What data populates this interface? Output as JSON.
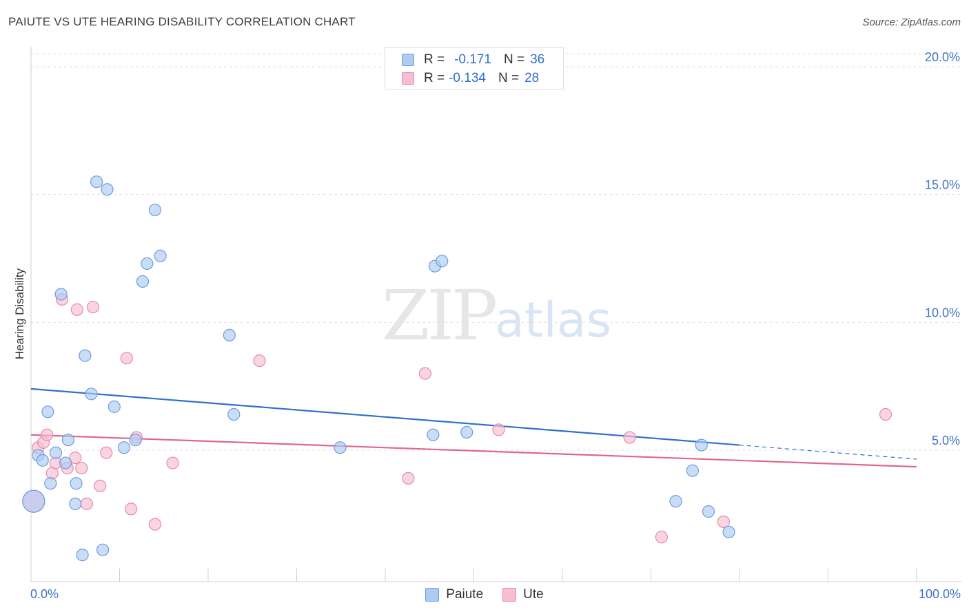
{
  "header": {
    "title": "PAIUTE VS UTE HEARING DISABILITY CORRELATION CHART",
    "source": "Source: ZipAtlas.com"
  },
  "watermark": {
    "zip": "ZIP",
    "atlas": "atlas"
  },
  "legend": {
    "rows": [
      {
        "r_label": "R =",
        "r_value": "-0.171",
        "n_label": "N =",
        "n_value": "36",
        "color": "#aecbf1"
      },
      {
        "r_label": "R =",
        "r_value": "-0.134",
        "n_label": "N =",
        "n_value": "28",
        "color": "#f7bfd1"
      }
    ]
  },
  "bottom_legend": [
    {
      "label": "Paiute",
      "color": "#aecbf1"
    },
    {
      "label": "Ute",
      "color": "#f7bfd1"
    }
  ],
  "chart_data": {
    "type": "scatter",
    "title": "PAIUTE VS UTE HEARING DISABILITY CORRELATION CHART",
    "xlabel": "",
    "ylabel": "Hearing Disability",
    "xlim": [
      0,
      100
    ],
    "ylim": [
      0,
      20
    ],
    "x_tick_labels": [
      "0.0%",
      "100.0%"
    ],
    "y_ticks": [
      5,
      10,
      15,
      20
    ],
    "y_tick_labels": [
      "5.0%",
      "10.0%",
      "15.0%",
      "20.0%"
    ],
    "grid": "horizontal dashed",
    "legend_position": "top-center",
    "series": [
      {
        "name": "Paiute",
        "color": "#aecbf1",
        "stroke": "#6b9de0",
        "line_color": "#2f6fce",
        "trend": {
          "x": [
            0,
            80
          ],
          "y": [
            7.4,
            5.2
          ],
          "dashed_to": [
            100,
            4.65
          ]
        },
        "points": [
          [
            0.3,
            3.0
          ],
          [
            0.8,
            4.8
          ],
          [
            1.3,
            4.6
          ],
          [
            1.9,
            6.5
          ],
          [
            2.2,
            3.7
          ],
          [
            2.8,
            4.9
          ],
          [
            3.4,
            11.1
          ],
          [
            3.9,
            4.5
          ],
          [
            4.2,
            5.4
          ],
          [
            5.1,
            3.7
          ],
          [
            5.0,
            2.9
          ],
          [
            5.8,
            0.9
          ],
          [
            6.1,
            8.7
          ],
          [
            6.8,
            7.2
          ],
          [
            7.4,
            15.5
          ],
          [
            8.1,
            1.1
          ],
          [
            8.6,
            15.2
          ],
          [
            9.4,
            6.7
          ],
          [
            10.5,
            5.1
          ],
          [
            11.8,
            5.4
          ],
          [
            12.6,
            11.6
          ],
          [
            13.1,
            12.3
          ],
          [
            14.0,
            14.4
          ],
          [
            14.6,
            12.6
          ],
          [
            22.4,
            9.5
          ],
          [
            22.9,
            6.4
          ],
          [
            34.9,
            5.1
          ],
          [
            45.4,
            5.6
          ],
          [
            45.6,
            12.2
          ],
          [
            46.4,
            12.4
          ],
          [
            49.2,
            5.7
          ],
          [
            72.8,
            3.0
          ],
          [
            74.7,
            4.2
          ],
          [
            75.7,
            5.2
          ],
          [
            76.5,
            2.6
          ],
          [
            78.8,
            1.8
          ]
        ]
      },
      {
        "name": "Ute",
        "color": "#f7bfd1",
        "stroke": "#e78aa8",
        "line_color": "#e0668e",
        "trend": {
          "x": [
            0,
            100
          ],
          "y": [
            5.6,
            4.35
          ]
        },
        "points": [
          [
            0.3,
            3.0
          ],
          [
            0.8,
            5.1
          ],
          [
            1.4,
            5.3
          ],
          [
            1.8,
            5.6
          ],
          [
            2.4,
            4.1
          ],
          [
            2.8,
            4.5
          ],
          [
            3.5,
            10.9
          ],
          [
            4.1,
            4.3
          ],
          [
            5.0,
            4.7
          ],
          [
            5.2,
            10.5
          ],
          [
            5.7,
            4.3
          ],
          [
            6.3,
            2.9
          ],
          [
            7.0,
            10.6
          ],
          [
            7.8,
            3.6
          ],
          [
            8.5,
            4.9
          ],
          [
            10.8,
            8.6
          ],
          [
            11.3,
            2.7
          ],
          [
            11.9,
            5.5
          ],
          [
            14.0,
            2.1
          ],
          [
            16.0,
            4.5
          ],
          [
            25.8,
            8.5
          ],
          [
            42.6,
            3.9
          ],
          [
            44.5,
            8.0
          ],
          [
            52.8,
            5.8
          ],
          [
            67.6,
            5.5
          ],
          [
            71.2,
            1.6
          ],
          [
            78.2,
            2.2
          ],
          [
            96.5,
            6.4
          ]
        ]
      }
    ]
  }
}
